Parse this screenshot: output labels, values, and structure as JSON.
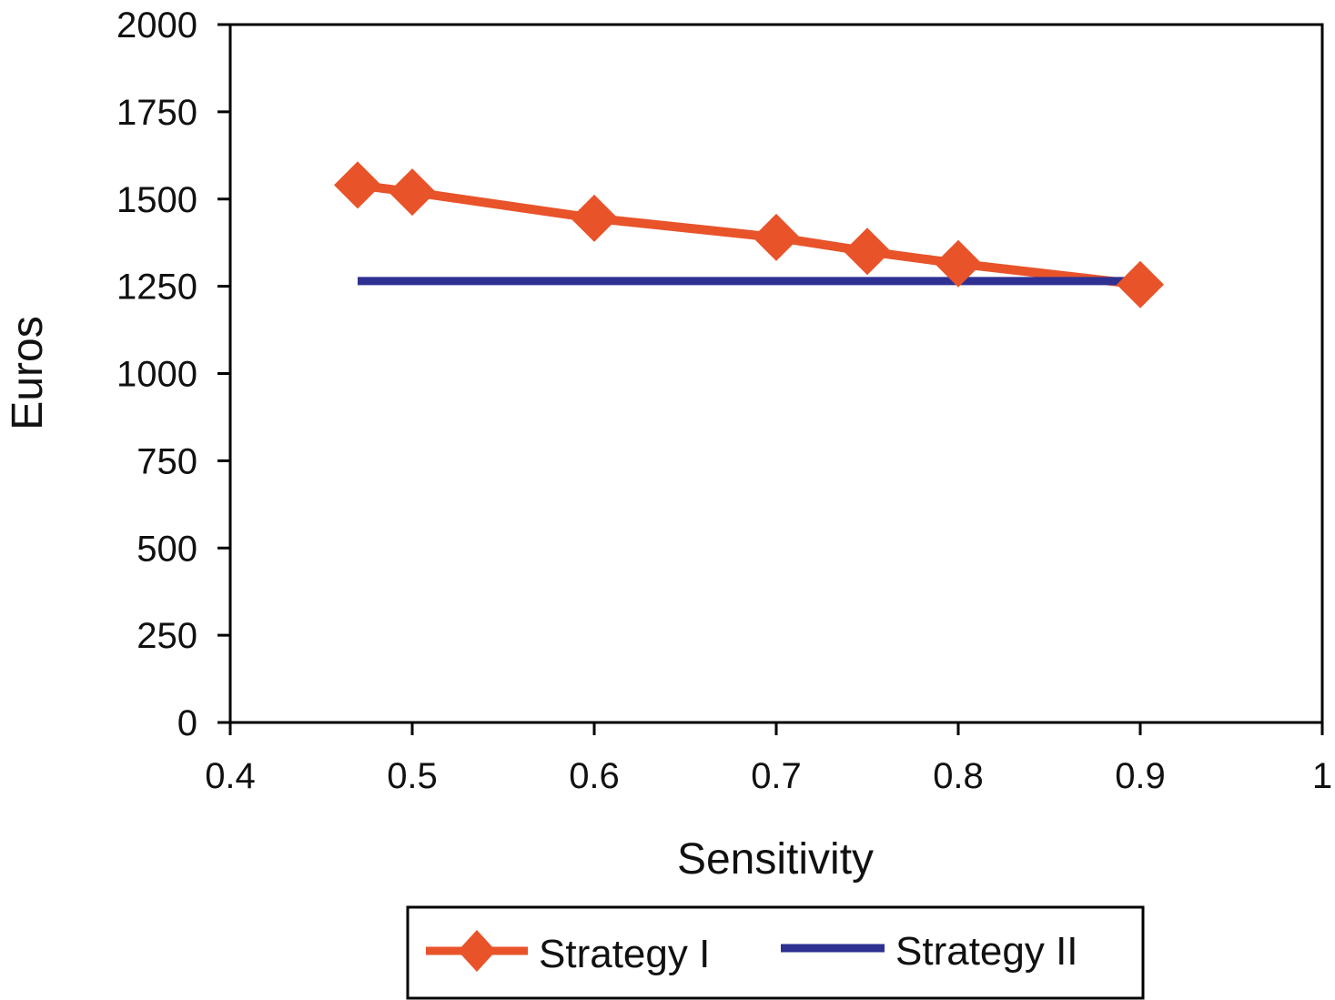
{
  "chart_data": {
    "type": "line",
    "title": "",
    "xlabel": "Sensitivity",
    "ylabel": "Euros",
    "xlim": [
      0.4,
      1
    ],
    "ylim": [
      0,
      2000
    ],
    "x_ticks": [
      0.4,
      0.5,
      0.6,
      0.7,
      0.8,
      0.9,
      1
    ],
    "x_tick_labels": [
      "0.4",
      "0.5",
      "0.6",
      "0.7",
      "0.8",
      "0.9",
      "1"
    ],
    "y_ticks": [
      0,
      250,
      500,
      750,
      1000,
      1250,
      1500,
      1750,
      2000
    ],
    "y_tick_labels": [
      "0",
      "250",
      "500",
      "750",
      "1000",
      "1250",
      "1500",
      "1750",
      "2000"
    ],
    "grid": false,
    "legend_position": "bottom",
    "series": [
      {
        "name": "Strategy I",
        "color": "#e8532a",
        "marker": "diamond",
        "x": [
          0.47,
          0.5,
          0.6,
          0.7,
          0.75,
          0.8,
          0.9
        ],
        "y": [
          1540,
          1520,
          1445,
          1390,
          1350,
          1315,
          1255
        ]
      },
      {
        "name": "Strategy II",
        "color": "#2e3192",
        "marker": "none",
        "x": [
          0.47,
          0.9
        ],
        "y": [
          1265,
          1265
        ]
      }
    ]
  }
}
